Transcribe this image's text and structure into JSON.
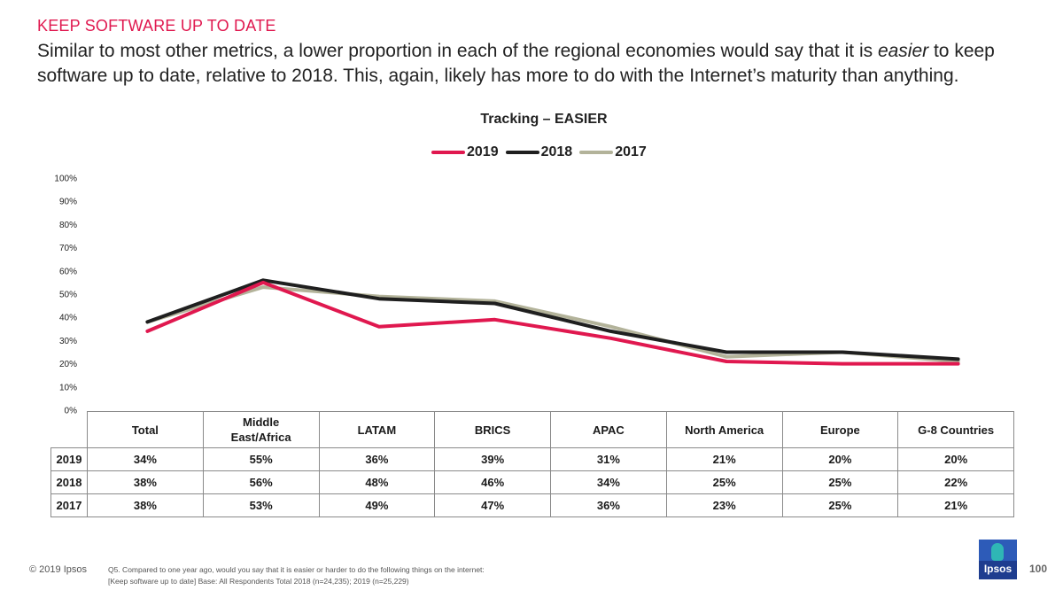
{
  "header": {
    "section": "KEEP SOFTWARE UP TO DATE",
    "headline_before": "Similar to most other metrics, a lower proportion in each of the regional economies would say that it is ",
    "headline_emph": "easier",
    "headline_after": " to keep software up to date, relative to 2018. This, again, likely has more to do with the Internet’s maturity than anything."
  },
  "chart_data": {
    "type": "line",
    "title": "Tracking – EASIER",
    "categories": [
      "Total",
      "Middle East/Africa",
      "LATAM",
      "BRICS",
      "APAC",
      "North America",
      "Europe",
      "G-8 Countries"
    ],
    "category_display": [
      "Total",
      "Middle\nEast/Africa",
      "LATAM",
      "BRICS",
      "APAC",
      "North America",
      "Europe",
      "G-8 Countries"
    ],
    "series": [
      {
        "name": "2019",
        "color": "#e0184f",
        "values": [
          34,
          55,
          36,
          39,
          31,
          21,
          20,
          20
        ],
        "labels": [
          "34%",
          "55%",
          "36%",
          "39%",
          "31%",
          "21%",
          "20%",
          "20%"
        ]
      },
      {
        "name": "2018",
        "color": "#1f1f1f",
        "values": [
          38,
          56,
          48,
          46,
          34,
          25,
          25,
          22
        ],
        "labels": [
          "38%",
          "56%",
          "48%",
          "46%",
          "34%",
          "25%",
          "25%",
          "22%"
        ]
      },
      {
        "name": "2017",
        "color": "#b3b39a",
        "values": [
          38,
          53,
          49,
          47,
          36,
          23,
          25,
          21
        ],
        "labels": [
          "38%",
          "53%",
          "49%",
          "47%",
          "36%",
          "23%",
          "25%",
          "21%"
        ]
      }
    ],
    "ylim": [
      0,
      100
    ],
    "yticks": [
      "0%",
      "10%",
      "20%",
      "30%",
      "40%",
      "50%",
      "60%",
      "70%",
      "80%",
      "90%",
      "100%"
    ],
    "grid": false,
    "legend_position": "top-center",
    "xlabel": "",
    "ylabel": ""
  },
  "footer": {
    "copyright": "© 2019 Ipsos",
    "note_line1": "Q5. Compared to one year ago, would you say that it is easier or harder to do the following things on the internet:",
    "note_line2": "[Keep software up to date] Base: All Respondents Total 2018 (n=24,235); 2019 (n=25,229)",
    "logo_text": "Ipsos",
    "page_number": "100"
  }
}
